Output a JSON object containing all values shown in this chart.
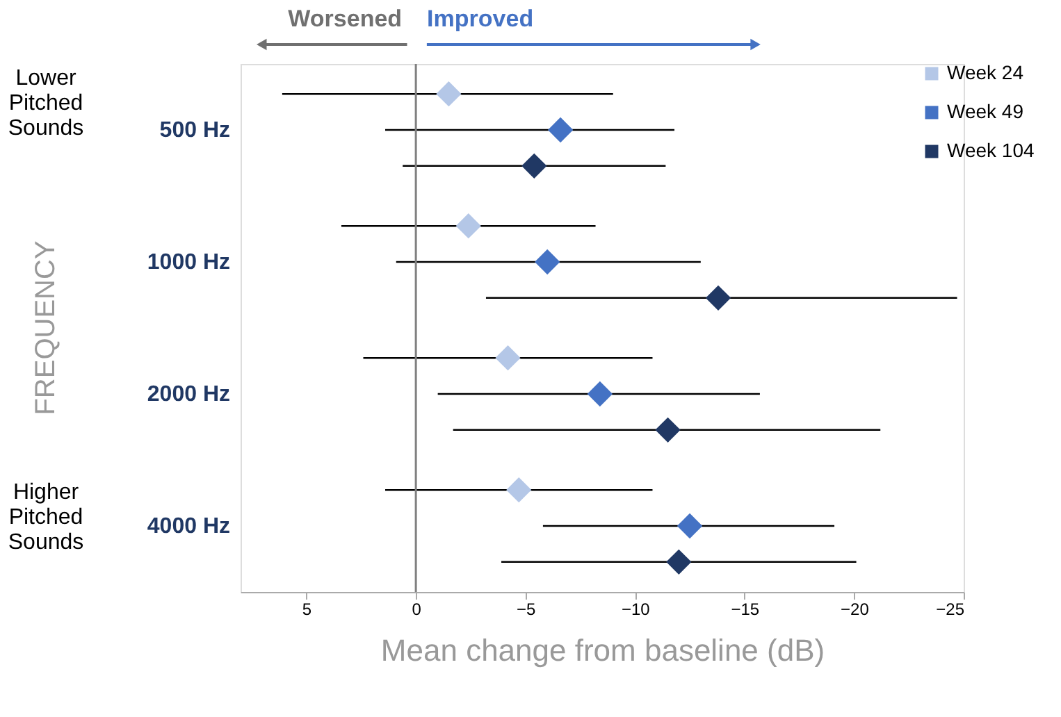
{
  "chart_data": {
    "type": "scatter",
    "orientation": "horizontal",
    "categories": [
      "500 Hz",
      "1000 Hz",
      "2000 Hz",
      "4000 Hz"
    ],
    "series": [
      {
        "name": "Week 24",
        "color": "#b4c7e7",
        "values": [
          -1.5,
          -2.4,
          -4.2,
          -4.7
        ],
        "errors": [
          [
            -9.0,
            6.1
          ],
          [
            -8.2,
            3.4
          ],
          [
            -10.8,
            2.4
          ],
          [
            -10.8,
            1.4
          ]
        ]
      },
      {
        "name": "Week 49",
        "color": "#4472c4",
        "values": [
          -6.6,
          -6.0,
          -8.4,
          -12.5
        ],
        "errors": [
          [
            -11.8,
            1.4
          ],
          [
            -13.0,
            0.9
          ],
          [
            -15.7,
            -1.0
          ],
          [
            -19.1,
            -5.8
          ]
        ]
      },
      {
        "name": "Week 104",
        "color": "#203864",
        "values": [
          -5.4,
          -13.8,
          -11.5,
          -12.0
        ],
        "errors": [
          [
            -11.4,
            0.6
          ],
          [
            -24.7,
            -3.2
          ],
          [
            -21.2,
            -1.7
          ],
          [
            -20.1,
            -3.9
          ]
        ]
      }
    ],
    "xlim": [
      8,
      -25
    ],
    "xticks": [
      5,
      0,
      -5,
      -10,
      -15,
      -20,
      -25
    ],
    "xlabel": "Mean change from baseline (dB)",
    "ref_lines": [
      {
        "axis": "x",
        "value": 0,
        "color": "#808080"
      }
    ],
    "annotations": [
      "Lower Pitched Sounds",
      "Higher Pitched Sounds",
      "FREQUENCY",
      "Worsened",
      "Improved"
    ],
    "marker": "diamond",
    "legend": "top right",
    "grid": false
  }
}
